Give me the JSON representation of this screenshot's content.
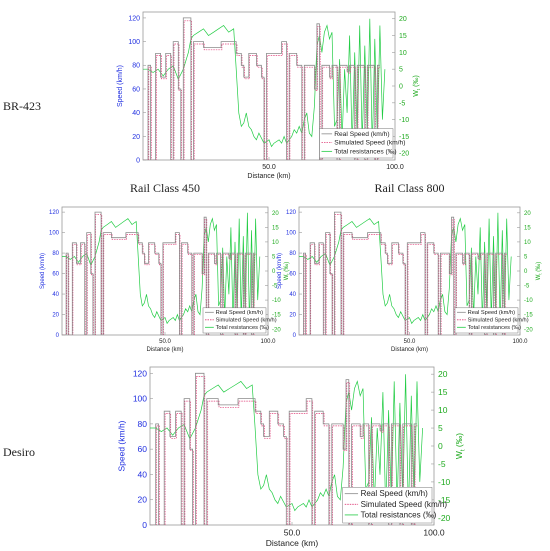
{
  "colors": {
    "real": "#8a8a8a",
    "simulated": "#e0407a",
    "resistance": "#22cc44",
    "left_axis": "#1f2ee0",
    "right_axis": "#1faa1f",
    "frame": "#9a9a9a"
  },
  "chart_data": [
    {
      "type": "line",
      "panel_label": "BR-423",
      "title": "",
      "xlabel": "Distance (km)",
      "ylabel": "Speed (km/h)",
      "y2label": "W",
      "y2label_sub": "t",
      "y2label_unit": "(‰)",
      "xlim": [
        0,
        100
      ],
      "ylim": [
        0,
        125
      ],
      "y2lim": [
        -22,
        22
      ],
      "xticks": [
        "50.0",
        "100.0"
      ],
      "yticks": [
        "0",
        "20",
        "40",
        "60",
        "80",
        "100",
        "120"
      ],
      "y2ticks": [
        "-20",
        "-15",
        "-10",
        "-5",
        "0",
        "5",
        "10",
        "15",
        "20"
      ],
      "legend_position": "bottom-right",
      "legend": [
        "Real Speed (km/h)",
        "Simulated Speed (km/h)",
        "Total resistances (‰)"
      ]
    },
    {
      "type": "line",
      "panel_label": "",
      "title": "Rail Class 450",
      "xlabel": "Distance (km)",
      "ylabel": "Speed (km/h)",
      "y2label": "W",
      "y2label_sub": "t",
      "y2label_unit": "(‰)",
      "xlim": [
        0,
        100
      ],
      "ylim": [
        0,
        125
      ],
      "y2lim": [
        -22,
        22
      ],
      "xticks": [
        "50.0",
        "100.0"
      ],
      "yticks": [
        "0",
        "20",
        "40",
        "60",
        "80",
        "100",
        "120"
      ],
      "y2ticks": [
        "-20",
        "-15",
        "-10",
        "-5",
        "0",
        "5",
        "10",
        "15",
        "20"
      ],
      "legend_position": "bottom-right",
      "legend": [
        "Real Speed (km/h)",
        "Simulated Speed (km/h)",
        "Total resistances (‰)"
      ]
    },
    {
      "type": "line",
      "panel_label": "",
      "title": "Rail Class 800",
      "xlabel": "Distance (km)",
      "ylabel": "Speed (km/h)",
      "y2label": "W",
      "y2label_sub": "t",
      "y2label_unit": "(‰)",
      "xlim": [
        0,
        100
      ],
      "ylim": [
        0,
        125
      ],
      "y2lim": [
        -22,
        22
      ],
      "xticks": [
        "50.0",
        "100.0"
      ],
      "yticks": [
        "0",
        "20",
        "40",
        "60",
        "80",
        "100",
        "120"
      ],
      "y2ticks": [
        "-20",
        "-15",
        "-10",
        "-5",
        "0",
        "5",
        "10",
        "15",
        "20"
      ],
      "legend_position": "bottom-right",
      "legend": [
        "Real Speed (km/h)",
        "Simulated Speed (km/h)",
        "Total resistances (‰)"
      ]
    },
    {
      "type": "line",
      "panel_label": "Desiro",
      "title": "",
      "xlabel": "Distance (km)",
      "ylabel": "Speed (km/h)",
      "y2label": "W",
      "y2label_sub": "t",
      "y2label_unit": "(‰)",
      "xlim": [
        0,
        100
      ],
      "ylim": [
        0,
        125
      ],
      "y2lim": [
        -22,
        22
      ],
      "xticks": [
        "50.0",
        "100.0"
      ],
      "yticks": [
        "0",
        "20",
        "40",
        "60",
        "80",
        "100",
        "120"
      ],
      "y2ticks": [
        "-20",
        "-15",
        "-10",
        "-5",
        "0",
        "5",
        "10",
        "15",
        "20"
      ],
      "legend_position": "bottom-right",
      "legend": [
        "Real Speed (km/h)",
        "Simulated Speed (km/h)",
        "Total resistances (‰)"
      ]
    }
  ],
  "series": {
    "speed": [
      [
        0,
        0
      ],
      [
        2,
        0
      ],
      [
        2,
        80
      ],
      [
        3,
        80
      ],
      [
        3,
        0
      ],
      [
        5,
        0
      ],
      [
        5,
        90
      ],
      [
        7,
        90
      ],
      [
        7,
        70
      ],
      [
        9,
        70
      ],
      [
        9,
        90
      ],
      [
        11,
        90
      ],
      [
        11,
        0
      ],
      [
        12,
        0
      ],
      [
        12,
        100
      ],
      [
        14,
        100
      ],
      [
        14,
        60
      ],
      [
        15,
        60
      ],
      [
        15,
        0
      ],
      [
        16,
        0
      ],
      [
        16,
        120
      ],
      [
        19,
        120
      ],
      [
        19,
        0
      ],
      [
        20,
        0
      ],
      [
        20,
        100
      ],
      [
        24,
        100
      ],
      [
        24,
        95
      ],
      [
        31,
        95
      ],
      [
        31,
        100
      ],
      [
        37,
        100
      ],
      [
        37,
        90
      ],
      [
        39,
        90
      ],
      [
        39,
        80
      ],
      [
        40,
        80
      ],
      [
        40,
        70
      ],
      [
        42,
        70
      ],
      [
        42,
        90
      ],
      [
        45,
        90
      ],
      [
        45,
        80
      ],
      [
        47,
        80
      ],
      [
        47,
        70
      ],
      [
        48,
        70
      ],
      [
        48,
        0
      ],
      [
        49,
        0
      ],
      [
        49,
        90
      ],
      [
        55,
        90
      ],
      [
        55,
        100
      ],
      [
        57,
        100
      ],
      [
        57,
        0
      ],
      [
        58,
        0
      ],
      [
        58,
        90
      ],
      [
        61,
        90
      ],
      [
        61,
        80
      ],
      [
        63,
        80
      ],
      [
        63,
        0
      ],
      [
        64,
        0
      ],
      [
        64,
        80
      ],
      [
        68,
        80
      ],
      [
        68,
        60
      ],
      [
        69,
        60
      ],
      [
        69,
        115
      ],
      [
        70,
        115
      ],
      [
        70,
        0
      ],
      [
        71,
        0
      ],
      [
        71,
        80
      ],
      [
        74,
        80
      ],
      [
        74,
        70
      ],
      [
        75,
        70
      ],
      [
        75,
        80
      ],
      [
        77,
        80
      ],
      [
        77,
        0
      ],
      [
        78,
        0
      ],
      [
        78,
        80
      ],
      [
        81,
        80
      ],
      [
        81,
        75
      ],
      [
        82,
        75
      ],
      [
        82,
        80
      ],
      [
        84,
        80
      ],
      [
        84,
        0
      ],
      [
        85,
        0
      ],
      [
        85,
        80
      ],
      [
        88,
        80
      ],
      [
        88,
        0
      ],
      [
        89,
        0
      ],
      [
        89,
        80
      ],
      [
        92,
        80
      ],
      [
        92,
        0
      ],
      [
        93,
        0
      ],
      [
        93,
        80
      ],
      [
        94,
        80
      ]
    ],
    "resistance": [
      [
        0,
        5
      ],
      [
        2,
        5
      ],
      [
        4,
        4
      ],
      [
        6,
        5
      ],
      [
        8,
        3
      ],
      [
        10,
        5
      ],
      [
        12,
        6
      ],
      [
        14,
        2
      ],
      [
        16,
        5
      ],
      [
        18,
        10
      ],
      [
        19,
        14
      ],
      [
        20,
        15
      ],
      [
        22,
        16
      ],
      [
        24,
        17
      ],
      [
        26,
        15
      ],
      [
        28,
        16
      ],
      [
        30,
        17
      ],
      [
        32,
        18
      ],
      [
        34,
        16
      ],
      [
        36,
        17
      ],
      [
        37,
        5
      ],
      [
        38,
        -8
      ],
      [
        39,
        -12
      ],
      [
        40,
        -11
      ],
      [
        41,
        -8
      ],
      [
        42,
        -12
      ],
      [
        43,
        -13
      ],
      [
        44,
        -15
      ],
      [
        45,
        -16
      ],
      [
        46,
        -14
      ],
      [
        48,
        -17
      ],
      [
        50,
        -16
      ],
      [
        51,
        -18
      ],
      [
        52,
        -17
      ],
      [
        54,
        -16
      ],
      [
        55,
        -17
      ],
      [
        56,
        -15
      ],
      [
        57,
        -17
      ],
      [
        58,
        -16
      ],
      [
        59,
        -15
      ],
      [
        60,
        -13
      ],
      [
        61,
        -14
      ],
      [
        62,
        -12
      ],
      [
        63,
        -14
      ],
      [
        64,
        -10
      ],
      [
        65,
        -8
      ],
      [
        66,
        -14
      ],
      [
        67,
        -15
      ],
      [
        68,
        -6
      ],
      [
        69,
        12
      ],
      [
        70,
        15
      ],
      [
        71,
        10
      ],
      [
        72,
        16
      ],
      [
        73,
        18
      ],
      [
        74,
        14
      ],
      [
        75,
        16
      ],
      [
        76,
        -12
      ],
      [
        77,
        -10
      ],
      [
        78,
        8
      ],
      [
        79,
        -16
      ],
      [
        80,
        5
      ],
      [
        81,
        -8
      ],
      [
        82,
        15
      ],
      [
        83,
        -18
      ],
      [
        84,
        10
      ],
      [
        85,
        -16
      ],
      [
        86,
        18
      ],
      [
        87,
        -17
      ],
      [
        88,
        12
      ],
      [
        89,
        -15
      ],
      [
        90,
        20
      ],
      [
        91,
        -19
      ],
      [
        92,
        14
      ],
      [
        93,
        -16
      ],
      [
        94,
        18
      ],
      [
        95,
        -10
      ],
      [
        96,
        5
      ]
    ]
  }
}
